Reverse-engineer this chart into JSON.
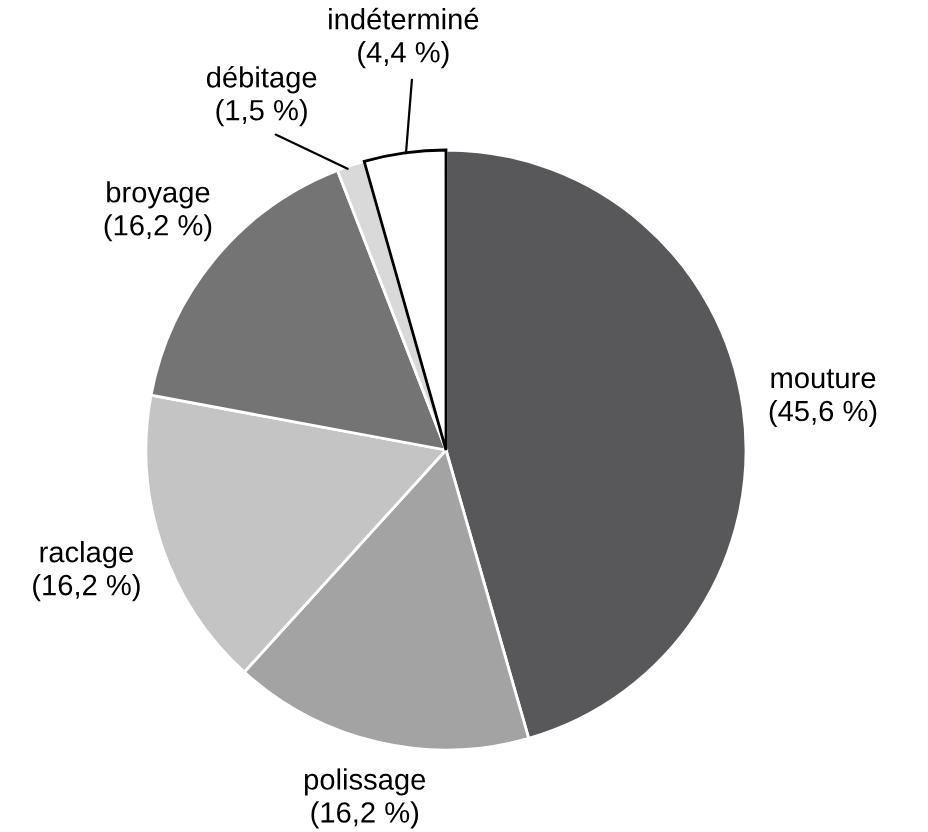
{
  "chart_data": {
    "type": "pie",
    "categories": [
      "mouture",
      "polissage",
      "raclage",
      "broyage",
      "débitage",
      "indéterminé"
    ],
    "values": [
      45.6,
      16.2,
      16.2,
      16.2,
      1.5,
      4.4
    ],
    "value_labels": [
      "(45,6 %)",
      "(16,2 %)",
      "(16,2 %)",
      "(16,2 %)",
      "(1,5 %)",
      "(4,4 %)"
    ],
    "colors": [
      "#58585a",
      "#a3a3a3",
      "#c4c4c4",
      "#747475",
      "#d9d9d9",
      "#ffffff"
    ],
    "legend": false
  }
}
